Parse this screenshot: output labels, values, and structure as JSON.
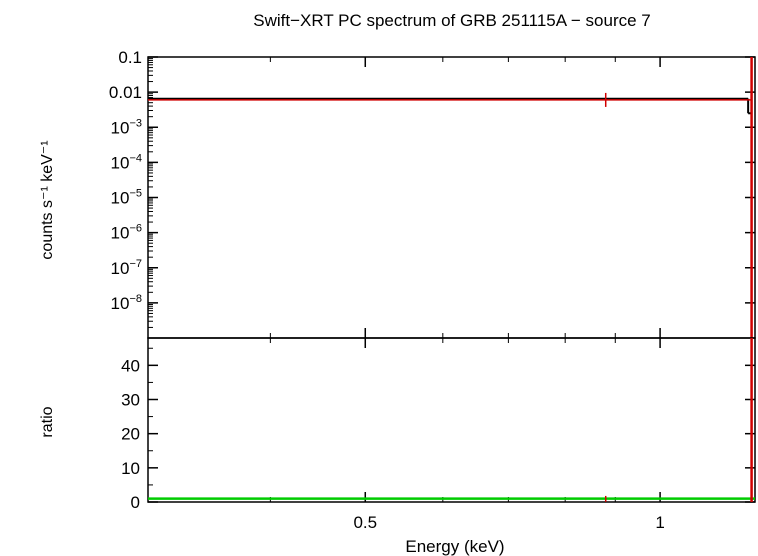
{
  "title": "Swift−XRT PC spectrum of GRB 251115A − source 7",
  "chart_data": [
    {
      "type": "scatter",
      "panel": "spectrum",
      "ylabel": "counts s⁻¹ keV⁻¹",
      "yscale": "log",
      "ylim": [
        1e-09,
        0.1
      ],
      "yticks": [
        {
          "base": "0.1",
          "exp": ""
        },
        {
          "base": "0.01",
          "exp": ""
        },
        {
          "base": "10",
          "exp": "−3"
        },
        {
          "base": "10",
          "exp": "−4"
        },
        {
          "base": "10",
          "exp": "−5"
        },
        {
          "base": "10",
          "exp": "−6"
        },
        {
          "base": "10",
          "exp": "−7"
        },
        {
          "base": "10",
          "exp": "−8"
        }
      ],
      "series": [
        {
          "color": "#d00000",
          "points": [
            {
              "x_lo": 0.3,
              "x_hi": 1.24,
              "x": 0.88,
              "y": 0.006,
              "y_lo": 0.003,
              "y_hi": 0.12
            }
          ]
        },
        {
          "color": "#000000",
          "model": [
            {
              "x_lo": 0.3,
              "x_hi": 1.23,
              "y": 0.0065
            },
            {
              "x_lo": 1.23,
              "x_hi": 1.24,
              "y": 0.0025
            }
          ]
        }
      ]
    },
    {
      "type": "scatter",
      "panel": "ratio",
      "xlabel": "Energy (keV)",
      "ylabel": "ratio",
      "xscale": "log",
      "xlim": [
        0.3,
        1.25
      ],
      "ylim": [
        0,
        48
      ],
      "xticks": [
        "0.5",
        "1"
      ],
      "xtick_values": [
        0.5,
        1
      ],
      "yticks": [
        0,
        10,
        20,
        30,
        40
      ],
      "series": [
        {
          "color": "#d00000",
          "points": [
            {
              "x_lo": 0.3,
              "x_hi": 1.24,
              "x": 0.88,
              "y": 0.9,
              "y_lo": 0,
              "y_hi": 48
            }
          ]
        },
        {
          "color": "#00cc00",
          "line_y": 1
        }
      ]
    }
  ]
}
